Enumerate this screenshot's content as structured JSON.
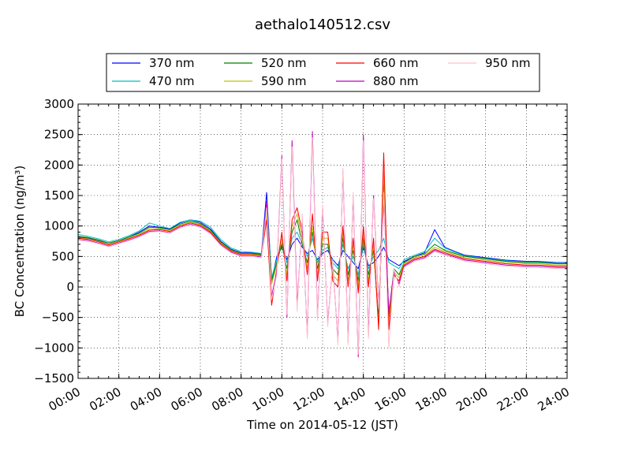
{
  "chart_data": {
    "type": "line",
    "title": "aethalo140512.csv",
    "xlabel": "Time on 2014-05-12 (JST)",
    "ylabel": "BC Concentration (ng/m³)",
    "xlim": [
      0,
      24
    ],
    "ylim": [
      -1500,
      3000
    ],
    "x_tick_labels": [
      "00:00",
      "02:00",
      "04:00",
      "06:00",
      "08:00",
      "10:00",
      "12:00",
      "14:00",
      "16:00",
      "18:00",
      "20:00",
      "22:00",
      "24:00"
    ],
    "y_ticks": [
      -1500,
      -1000,
      -500,
      0,
      500,
      1000,
      1500,
      2000,
      2500,
      3000
    ],
    "grid": true,
    "legend_position": "top",
    "x_hours": [
      0,
      0.5,
      1,
      1.5,
      2,
      2.5,
      3,
      3.5,
      4,
      4.5,
      5,
      5.5,
      6,
      6.5,
      7,
      7.5,
      8,
      8.5,
      9,
      9.25,
      9.5,
      9.75,
      10,
      10.25,
      10.5,
      10.75,
      11,
      11.25,
      11.5,
      11.75,
      12,
      12.25,
      12.5,
      12.75,
      13,
      13.25,
      13.5,
      13.75,
      14,
      14.25,
      14.5,
      14.75,
      15,
      15.25,
      15.5,
      15.75,
      16,
      16.5,
      17,
      17.5,
      18,
      18.5,
      19,
      19.5,
      20,
      20.5,
      21,
      21.5,
      22,
      22.5,
      23,
      23.5,
      24
    ],
    "series": [
      {
        "name": "370 nm",
        "color": "#0000ff",
        "values": [
          820,
          800,
          760,
          720,
          760,
          820,
          900,
          1000,
          980,
          950,
          1050,
          1100,
          1060,
          950,
          750,
          620,
          560,
          560,
          540,
          1550,
          100,
          500,
          650,
          450,
          700,
          800,
          650,
          550,
          600,
          450,
          550,
          600,
          450,
          350,
          600,
          500,
          400,
          300,
          650,
          350,
          400,
          500,
          650,
          450,
          400,
          350,
          420,
          500,
          560,
          940,
          650,
          580,
          520,
          500,
          480,
          460,
          440,
          430,
          420,
          420,
          410,
          400,
          400
        ]
      },
      {
        "name": "470 nm",
        "color": "#00bfbf",
        "values": [
          860,
          830,
          790,
          740,
          780,
          840,
          920,
          1050,
          1000,
          960,
          1060,
          1100,
          1080,
          980,
          780,
          640,
          580,
          570,
          550,
          1400,
          150,
          450,
          700,
          400,
          800,
          900,
          700,
          500,
          800,
          400,
          600,
          650,
          400,
          300,
          700,
          300,
          500,
          200,
          700,
          300,
          500,
          600,
          800,
          400,
          350,
          300,
          450,
          520,
          580,
          800,
          640,
          570,
          510,
          490,
          470,
          450,
          430,
          420,
          410,
          410,
          400,
          390,
          390
        ]
      },
      {
        "name": "520 nm",
        "color": "#008000",
        "values": [
          830,
          810,
          770,
          720,
          760,
          820,
          880,
          980,
          970,
          940,
          1030,
          1080,
          1040,
          930,
          740,
          610,
          550,
          550,
          530,
          1300,
          100,
          400,
          700,
          300,
          900,
          1100,
          700,
          400,
          900,
          300,
          700,
          700,
          300,
          200,
          800,
          200,
          600,
          100,
          800,
          200,
          600,
          -500,
          1800,
          -500,
          300,
          200,
          400,
          500,
          540,
          700,
          600,
          550,
          500,
          480,
          460,
          440,
          420,
          410,
          400,
          400,
          390,
          380,
          380
        ]
      },
      {
        "name": "590 nm",
        "color": "#bfbf00",
        "values": [
          810,
          790,
          750,
          700,
          750,
          800,
          860,
          950,
          950,
          920,
          1010,
          1060,
          1020,
          910,
          720,
          600,
          540,
          540,
          520,
          1200,
          50,
          350,
          800,
          200,
          1000,
          1200,
          800,
          300,
          1000,
          200,
          800,
          800,
          200,
          100,
          900,
          100,
          700,
          0,
          900,
          100,
          700,
          -600,
          1900,
          -600,
          250,
          150,
          380,
          480,
          520,
          650,
          580,
          530,
          480,
          460,
          440,
          420,
          400,
          390,
          380,
          380,
          370,
          360,
          360
        ]
      },
      {
        "name": "660 nm",
        "color": "#ff0000",
        "values": [
          800,
          780,
          740,
          690,
          740,
          790,
          850,
          930,
          940,
          910,
          1000,
          1050,
          1010,
          900,
          710,
          590,
          530,
          530,
          510,
          1100,
          -300,
          300,
          900,
          100,
          1100,
          1300,
          900,
          200,
          1200,
          100,
          900,
          900,
          100,
          0,
          1000,
          0,
          800,
          -100,
          1000,
          0,
          800,
          -700,
          2200,
          -700,
          200,
          100,
          360,
          460,
          500,
          620,
          560,
          510,
          460,
          440,
          420,
          400,
          380,
          370,
          360,
          360,
          350,
          340,
          340
        ]
      },
      {
        "name": "880 nm",
        "color": "#bf00bf",
        "values": [
          780,
          760,
          720,
          670,
          720,
          770,
          830,
          910,
          920,
          890,
          980,
          1030,
          990,
          880,
          690,
          570,
          510,
          510,
          490,
          1400,
          -150,
          250,
          2150,
          -500,
          2400,
          -300,
          1100,
          -800,
          2550,
          -500,
          1300,
          -600,
          400,
          -900,
          1900,
          -900,
          1500,
          -1150,
          2500,
          -800,
          1500,
          -300,
          1400,
          -400,
          250,
          50,
          340,
          440,
          480,
          600,
          540,
          490,
          440,
          420,
          400,
          380,
          360,
          350,
          340,
          340,
          330,
          320,
          320
        ]
      },
      {
        "name": "950 nm",
        "color": "#ffc0cb",
        "values": [
          770,
          750,
          710,
          660,
          710,
          760,
          820,
          900,
          910,
          880,
          970,
          1020,
          980,
          870,
          680,
          560,
          500,
          500,
          480,
          1300,
          -200,
          200,
          2100,
          -450,
          2300,
          -400,
          1200,
          -850,
          2450,
          -550,
          1350,
          -650,
          450,
          -950,
          1950,
          -950,
          1550,
          -1100,
          2400,
          -850,
          1450,
          -350,
          1550,
          -1000,
          300,
          0,
          320,
          420,
          460,
          580,
          520,
          470,
          420,
          400,
          380,
          360,
          340,
          330,
          320,
          320,
          310,
          300,
          300
        ]
      }
    ]
  }
}
